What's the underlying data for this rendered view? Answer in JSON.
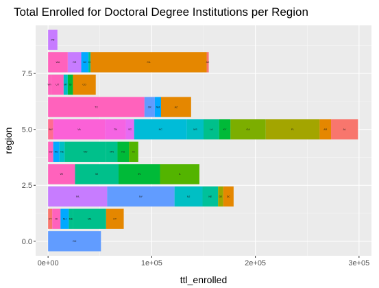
{
  "chart_data": {
    "type": "bar",
    "orientation": "horizontal",
    "stacked": true,
    "title": "Total Enrolled for Doctoral Degree Institutions per Region",
    "xlabel": "ttl_enrolled",
    "ylabel": "region",
    "xlim": [
      -12000,
      312000
    ],
    "ylim": [
      -0.65,
      9.65
    ],
    "x_ticks": [
      0,
      100000,
      200000,
      300000
    ],
    "x_tick_labels": [
      "0e+00",
      "1e+05",
      "2e+05",
      "3e+05"
    ],
    "y_ticks": [
      0,
      2.5,
      5,
      7.5
    ],
    "y_tick_labels": [
      "0.0",
      "2.5",
      "5.0",
      "7.5"
    ],
    "grid": true,
    "legend": "none",
    "panel_background": "#ebebeb",
    "grid_color": "#ffffff",
    "bars": [
      {
        "region": 0,
        "segments": [
          {
            "label": "OH",
            "value": 51000,
            "color": "#619cff"
          }
        ]
      },
      {
        "region": 1,
        "segments": [
          {
            "label": "VT",
            "value": 4000,
            "color": "#f8766d"
          },
          {
            "label": "RI",
            "value": 8000,
            "color": "#ff62bc"
          },
          {
            "label": "NH",
            "value": 8000,
            "color": "#00a9ff"
          },
          {
            "label": "ME",
            "value": 4000,
            "color": "#00c08b"
          },
          {
            "label": "MA",
            "value": 32000,
            "color": "#00c08b"
          },
          {
            "label": "CT",
            "value": 17000,
            "color": "#e58700"
          }
        ]
      },
      {
        "region": 2,
        "segments": [
          {
            "label": "PA",
            "value": 57000,
            "color": "#c77cff"
          },
          {
            "label": "NY",
            "value": 65000,
            "color": "#619cff"
          },
          {
            "label": "NJ",
            "value": 27000,
            "color": "#00bfc4"
          },
          {
            "label": "NE",
            "value": 15000,
            "color": "#00c19a"
          },
          {
            "label": "DE",
            "value": 5000,
            "color": "#99a800"
          },
          {
            "label": "DC",
            "value": 10000,
            "color": "#e58700"
          }
        ]
      },
      {
        "region": 3,
        "segments": [
          {
            "label": "WI",
            "value": 26000,
            "color": "#ff62bc"
          },
          {
            "label": "MI",
            "value": 42000,
            "color": "#00c08b"
          },
          {
            "label": "IN",
            "value": 40000,
            "color": "#00ba38"
          },
          {
            "label": "IL",
            "value": 38000,
            "color": "#53b400"
          }
        ]
      },
      {
        "region": 4,
        "segments": [
          {
            "label": "SD",
            "value": 5000,
            "color": "#ff62bc"
          },
          {
            "label": "ND",
            "value": 6000,
            "color": "#00a9ff"
          },
          {
            "label": "NE",
            "value": 5000,
            "color": "#00bfc4"
          },
          {
            "label": "MO",
            "value": 40000,
            "color": "#00c08b"
          },
          {
            "label": "MN",
            "value": 11000,
            "color": "#00c08b"
          },
          {
            "label": "KS",
            "value": 11000,
            "color": "#00ba38"
          },
          {
            "label": "IA",
            "value": 9000,
            "color": "#53b400"
          }
        ]
      },
      {
        "region": 5,
        "segments": [
          {
            "label": "WV",
            "value": 5000,
            "color": "#ff6c91"
          },
          {
            "label": "VA",
            "value": 50000,
            "color": "#fb61d7"
          },
          {
            "label": "TN",
            "value": 20000,
            "color": "#f564e3"
          },
          {
            "label": "SC",
            "value": 8000,
            "color": "#e76bf3"
          },
          {
            "label": "NC",
            "value": 51000,
            "color": "#00bcd8"
          },
          {
            "label": "MS",
            "value": 16000,
            "color": "#00bfc4"
          },
          {
            "label": "LA",
            "value": 15000,
            "color": "#00c08b"
          },
          {
            "label": "KY",
            "value": 11000,
            "color": "#00ba38"
          },
          {
            "label": "GA",
            "value": 34000,
            "color": "#7cae00"
          },
          {
            "label": "FL",
            "value": 52000,
            "color": "#a3a500"
          },
          {
            "label": "AR",
            "value": 11000,
            "color": "#e58700"
          },
          {
            "label": "AL",
            "value": 26000,
            "color": "#f8766d"
          }
        ]
      },
      {
        "region": 6,
        "segments": [
          {
            "label": "TX",
            "value": 93000,
            "color": "#ff62bc"
          },
          {
            "label": "OK",
            "value": 10000,
            "color": "#619cff"
          },
          {
            "label": "NM",
            "value": 6000,
            "color": "#00a9ff"
          },
          {
            "label": "AZ",
            "value": 29000,
            "color": "#e58700"
          }
        ]
      },
      {
        "region": 7,
        "segments": [
          {
            "label": "WY",
            "value": 3000,
            "color": "#ff62bc"
          },
          {
            "label": "UT",
            "value": 12000,
            "color": "#ff62bc"
          },
          {
            "label": "MT",
            "value": 4000,
            "color": "#00bfc4"
          },
          {
            "label": "ID",
            "value": 5000,
            "color": "#00ba38"
          },
          {
            "label": "CO",
            "value": 22000,
            "color": "#e58700"
          }
        ]
      },
      {
        "region": 8,
        "segments": [
          {
            "label": "WA",
            "value": 19000,
            "color": "#ff62bc"
          },
          {
            "label": "OR",
            "value": 13000,
            "color": "#c77cff"
          },
          {
            "label": "NV",
            "value": 7000,
            "color": "#00a9ff"
          },
          {
            "label": "HI",
            "value": 2000,
            "color": "#00c08b"
          },
          {
            "label": "CA",
            "value": 112000,
            "color": "#e58700"
          },
          {
            "label": "AK",
            "value": 2000,
            "color": "#f8766d"
          }
        ]
      },
      {
        "region": 9,
        "segments": [
          {
            "label": "PR",
            "value": 9000,
            "color": "#c77cff"
          }
        ]
      }
    ]
  }
}
